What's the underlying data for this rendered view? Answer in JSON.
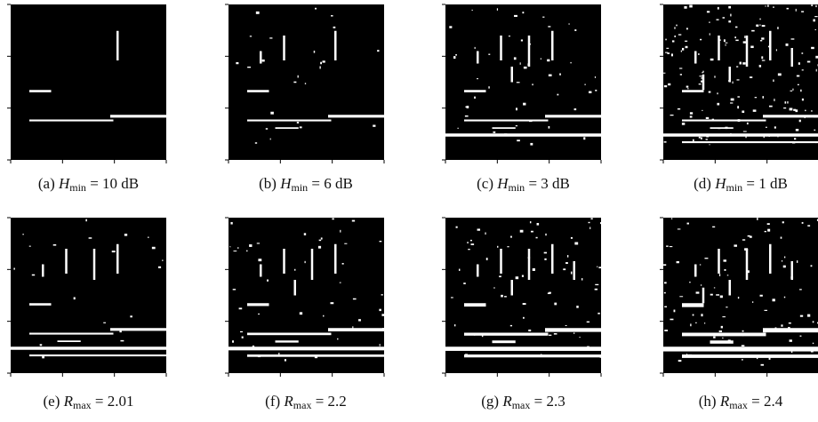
{
  "figure": {
    "panels": [
      {
        "label": "(a)",
        "symbol": "H",
        "subscript": "min",
        "rhs": "= 10 dB"
      },
      {
        "label": "(b)",
        "symbol": "H",
        "subscript": "min",
        "rhs": "= 6 dB"
      },
      {
        "label": "(c)",
        "symbol": "H",
        "subscript": "min",
        "rhs": "= 3 dB"
      },
      {
        "label": "(d)",
        "symbol": "H",
        "subscript": "min",
        "rhs": "= 1 dB"
      },
      {
        "label": "(e)",
        "symbol": "R",
        "subscript": "max",
        "rhs": "= 2.01"
      },
      {
        "label": "(f)",
        "symbol": "R",
        "subscript": "max",
        "rhs": "= 2.2"
      },
      {
        "label": "(g)",
        "symbol": "R",
        "subscript": "max",
        "rhs": "= 2.3"
      },
      {
        "label": "(h)",
        "symbol": "R",
        "subscript": "max",
        "rhs": "= 2.4"
      }
    ]
  }
}
